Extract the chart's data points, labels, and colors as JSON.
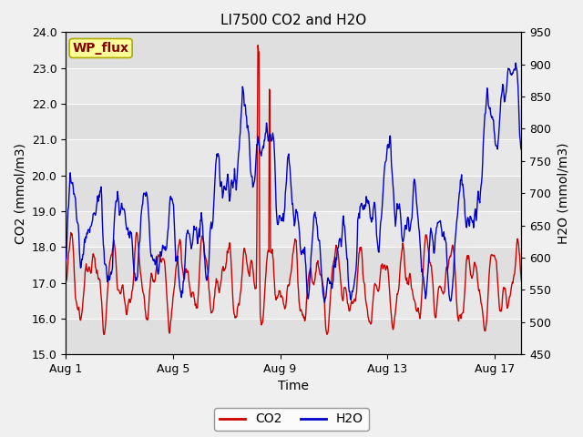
{
  "title": "LI7500 CO2 and H2O",
  "xlabel": "Time",
  "ylabel_left": "CO2 (mmol/m3)",
  "ylabel_right": "H2O (mmol/m3)",
  "annotation": "WP_flux",
  "ylim_left": [
    15.0,
    24.0
  ],
  "ylim_right": [
    450,
    950
  ],
  "yticks_left": [
    15.0,
    16.0,
    17.0,
    18.0,
    19.0,
    20.0,
    21.0,
    22.0,
    23.0,
    24.0
  ],
  "yticks_right": [
    450,
    500,
    550,
    600,
    650,
    700,
    750,
    800,
    850,
    900,
    950
  ],
  "xtick_labels": [
    "Aug 1",
    "Aug 5",
    "Aug 9",
    "Aug 13",
    "Aug 17"
  ],
  "xtick_positions": [
    0,
    4,
    8,
    12,
    16
  ],
  "xlim": [
    0,
    17
  ],
  "co2_color": "#cc0000",
  "h2o_color": "#0000cc",
  "fig_facecolor": "#f0f0f0",
  "ax_facecolor": "#e8e8e8",
  "legend_co2": "CO2",
  "legend_h2o": "H2O",
  "annotation_facecolor": "#ffff99",
  "annotation_edgecolor": "#aaaa00",
  "annotation_textcolor": "#880000",
  "title_fontsize": 11,
  "axis_label_fontsize": 10,
  "tick_fontsize": 9,
  "legend_fontsize": 10,
  "annotation_fontsize": 10,
  "linewidth": 1.0,
  "n_points": 800,
  "seed": 7
}
